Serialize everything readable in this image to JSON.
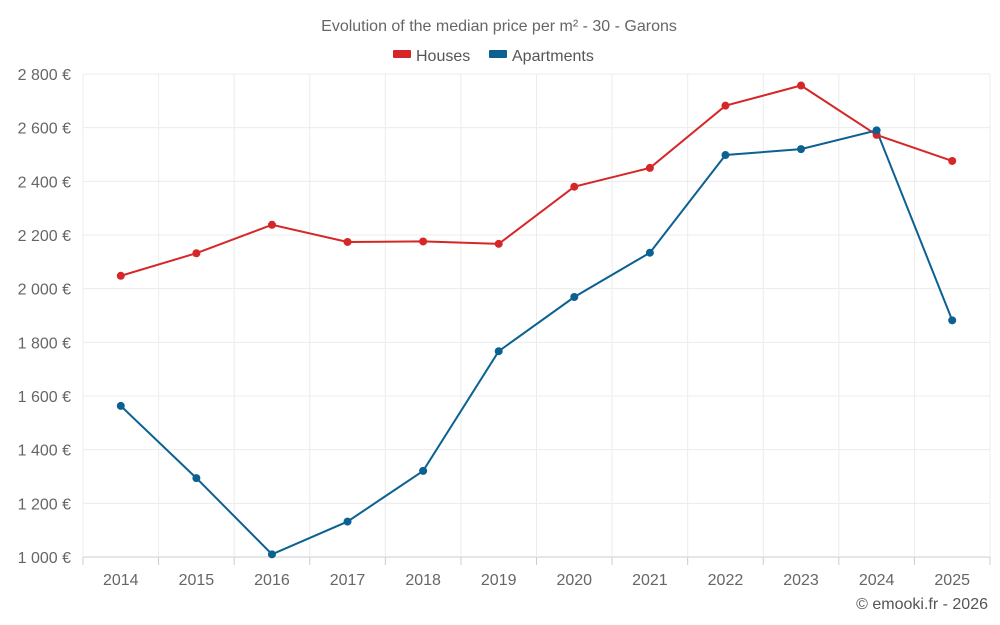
{
  "chart_data": {
    "type": "line",
    "title": "Evolution of the median price per m² - 30 - Garons",
    "categories": [
      "2014",
      "2015",
      "2016",
      "2017",
      "2018",
      "2019",
      "2020",
      "2021",
      "2022",
      "2023",
      "2024",
      "2025"
    ],
    "ylim": [
      1000,
      2800
    ],
    "yticks": [
      {
        "value": 1000,
        "label": "1 000 €"
      },
      {
        "value": 1200,
        "label": "1 200 €"
      },
      {
        "value": 1400,
        "label": "1 400 €"
      },
      {
        "value": 1600,
        "label": "1 600 €"
      },
      {
        "value": 1800,
        "label": "1 800 €"
      },
      {
        "value": 2000,
        "label": "2 000 €"
      },
      {
        "value": 2200,
        "label": "2 200 €"
      },
      {
        "value": 2400,
        "label": "2 400 €"
      },
      {
        "value": 2600,
        "label": "2 600 €"
      },
      {
        "value": 2800,
        "label": "2 800 €"
      }
    ],
    "series": [
      {
        "name": "Houses",
        "color": "#d62728",
        "values": [
          2048,
          2132,
          2238,
          2174,
          2176,
          2167,
          2380,
          2450,
          2682,
          2757,
          2573,
          2476
        ]
      },
      {
        "name": "Apartments",
        "color": "#0b6192",
        "values": [
          1563,
          1294,
          1010,
          1132,
          1321,
          1767,
          1969,
          2134,
          2498,
          2520,
          2590,
          1882
        ]
      }
    ],
    "legend_position": "top-center",
    "grid": true
  },
  "credit": "© emooki.fr - 2026"
}
